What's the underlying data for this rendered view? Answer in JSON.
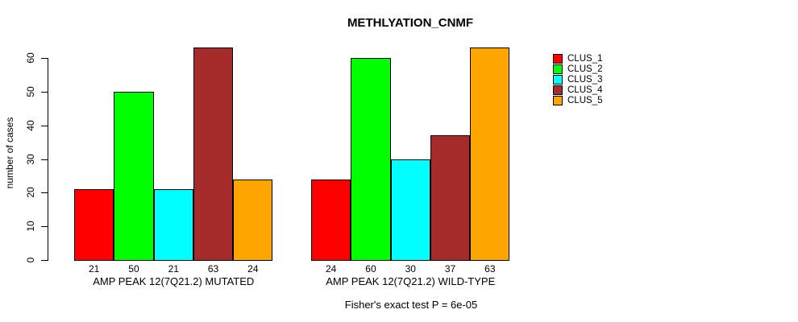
{
  "chart_data": {
    "type": "bar",
    "title": "METHLYATION_CNMF",
    "xlabel": "",
    "ylabel": "number of cases",
    "ylim": [
      0,
      63
    ],
    "yticks": [
      0,
      10,
      20,
      30,
      40,
      50,
      60
    ],
    "grid": false,
    "legend_position": "right-outside",
    "series_names": [
      "CLUS_1",
      "CLUS_2",
      "CLUS_3",
      "CLUS_4",
      "CLUS_5"
    ],
    "series_colors": [
      "#ff0000",
      "#00ff00",
      "#00ffff",
      "#a52a2a",
      "#ffa500"
    ],
    "categories": [
      "AMP PEAK 12(7Q21.2) MUTATED",
      "AMP PEAK 12(7Q21.2) WILD-TYPE"
    ],
    "groups": [
      {
        "label": "AMP PEAK 12(7Q21.2) MUTATED",
        "values": [
          21,
          50,
          21,
          63,
          24
        ]
      },
      {
        "label": "AMP PEAK 12(7Q21.2) WILD-TYPE",
        "values": [
          24,
          60,
          30,
          37,
          63
        ]
      }
    ],
    "bar_value_labels_shown": true,
    "annotation": "Fisher's exact test P = 6e-05"
  }
}
